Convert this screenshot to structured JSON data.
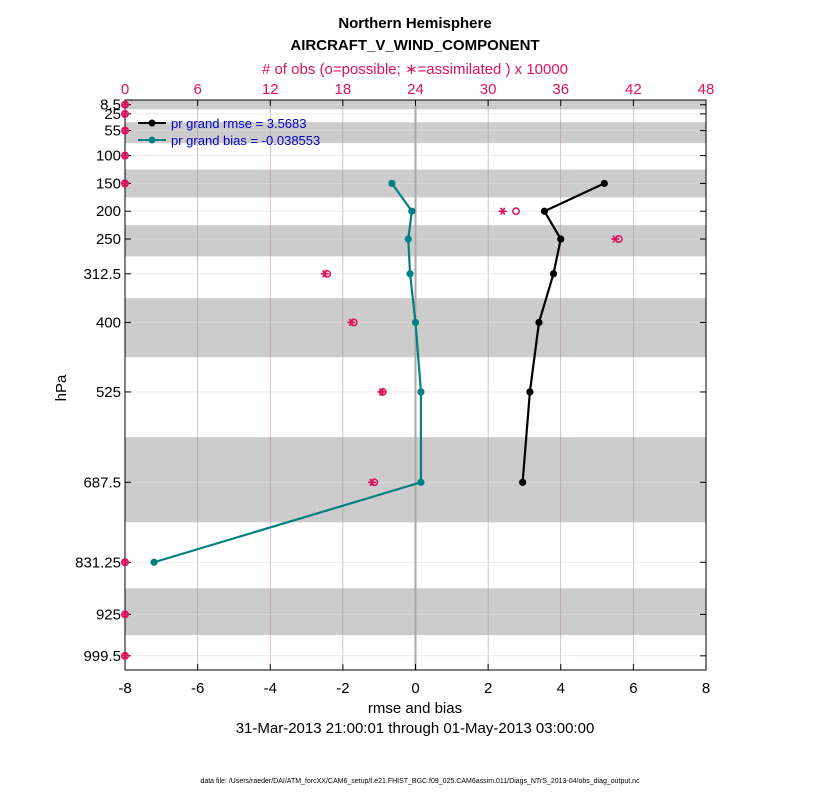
{
  "chart_data": {
    "type": "line",
    "title": "Northern Hemisphere",
    "subtitle": "AIRCRAFT_V_WIND_COMPONENT",
    "top_axis_label": "# of obs (o=possible; ∗=assimilated ) x 10000",
    "xlabel": "rmse and bias",
    "ylabel": "hPa",
    "date_range": "31-Mar-2013 21:00:01 through 01-May-2013 03:00:00",
    "footnote": "data file: /Users/raeder/DAI/ATM_forcXX/CAM6_setup/f.e21.FHIST_BGC.f09_025.CAM6assim.011/Diags_NTrS_2013-04/obs_diag_output.nc",
    "xlim": [
      -8,
      8
    ],
    "xticks": [
      "-8",
      "-6",
      "-4",
      "-2",
      "0",
      "2",
      "4",
      "6",
      "8"
    ],
    "top_xlim": [
      0,
      48
    ],
    "top_xticks": [
      "0",
      "6",
      "12",
      "18",
      "24",
      "30",
      "36",
      "42",
      "48"
    ],
    "levels": [
      8.5,
      25,
      55,
      100,
      150,
      200,
      250,
      312.5,
      400,
      525,
      687.5,
      831.25,
      925,
      999.5
    ],
    "level_labels": [
      "8.5",
      "25",
      "55",
      "100",
      "150",
      "200",
      "250",
      "312.5",
      "400",
      "525",
      "687.5",
      "831.25",
      "925",
      "999.5"
    ],
    "ylim": [
      0,
      1025
    ],
    "series": [
      {
        "name": "rmse",
        "legend": "pr grand rmse = 3.5683",
        "color": "#000000",
        "levels": [
          150,
          200,
          250,
          312.5,
          400,
          525,
          687.5
        ],
        "values": [
          5.2,
          3.55,
          4.0,
          3.8,
          3.4,
          3.15,
          2.95
        ]
      },
      {
        "name": "bias",
        "legend": "pr grand bias = -0.038553",
        "color": "#008080",
        "levels": [
          150,
          200,
          250,
          312.5,
          400,
          525,
          687.5,
          831.25
        ],
        "values": [
          -0.65,
          -0.1,
          -0.2,
          -0.15,
          0.0,
          0.15,
          0.15,
          -7.2
        ]
      }
    ],
    "obs_count_x10000": {
      "color": "#e0115f",
      "levels": [
        8.5,
        25,
        55,
        100,
        150,
        200,
        250,
        312.5,
        400,
        525,
        687.5,
        831.25,
        925,
        999.5
      ],
      "possible": [
        0,
        0,
        0,
        0,
        0,
        32.3,
        40.8,
        16.7,
        18.9,
        21.3,
        20.6,
        0,
        0,
        0
      ],
      "assimilated": [
        0,
        0,
        0,
        0,
        0,
        31.2,
        40.5,
        16.5,
        18.7,
        21.2,
        20.4,
        0,
        0,
        0
      ]
    }
  },
  "colors": {
    "obs": "#e0115f",
    "rmse": "#000000",
    "bias": "#008080",
    "legend_text": "#0000cc",
    "band": "#cccccc",
    "grid_v": "#b08090",
    "zero_line": "#aaaaaa"
  }
}
